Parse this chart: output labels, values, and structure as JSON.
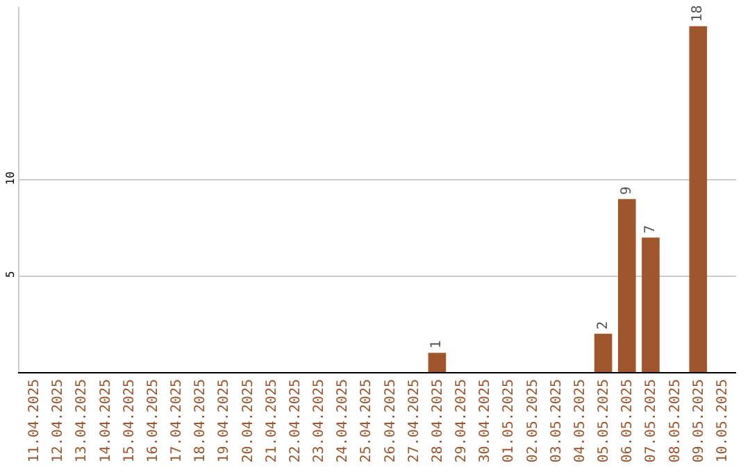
{
  "chart_data": {
    "type": "bar",
    "categories": [
      "11.04.2025",
      "12.04.2025",
      "13.04.2025",
      "14.04.2025",
      "15.04.2025",
      "16.04.2025",
      "17.04.2025",
      "18.04.2025",
      "19.04.2025",
      "20.04.2025",
      "21.04.2025",
      "22.04.2025",
      "23.04.2025",
      "24.04.2025",
      "25.04.2025",
      "26.04.2025",
      "27.04.2025",
      "28.04.2025",
      "29.04.2025",
      "30.04.2025",
      "01.05.2025",
      "02.05.2025",
      "03.05.2025",
      "04.05.2025",
      "05.05.2025",
      "06.05.2025",
      "07.05.2025",
      "08.05.2025",
      "09.05.2025",
      "10.05.2025"
    ],
    "values": [
      0,
      0,
      0,
      0,
      0,
      0,
      0,
      0,
      0,
      0,
      0,
      0,
      0,
      0,
      0,
      0,
      0,
      1,
      0,
      0,
      0,
      0,
      0,
      0,
      2,
      9,
      7,
      0,
      18,
      0
    ],
    "value_labels": [
      null,
      null,
      null,
      null,
      null,
      null,
      null,
      null,
      null,
      null,
      null,
      null,
      null,
      null,
      null,
      null,
      null,
      "1",
      null,
      null,
      null,
      null,
      null,
      null,
      "2",
      "9",
      "7",
      null,
      "18",
      null
    ],
    "color": "#a0562c",
    "ylim": [
      0,
      19
    ],
    "yticks": [
      5,
      10
    ],
    "grid": "y",
    "legend": false
  }
}
